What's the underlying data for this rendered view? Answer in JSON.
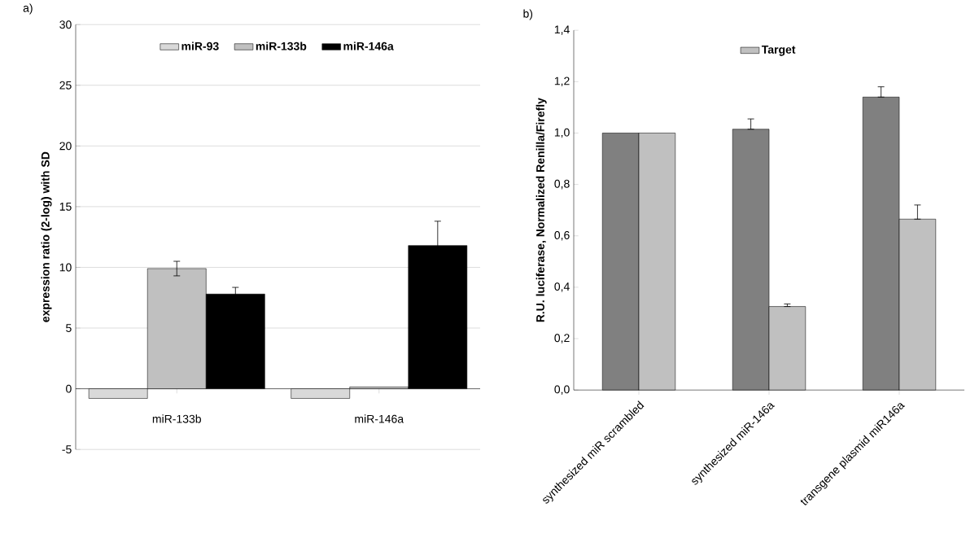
{
  "chart_data": [
    {
      "type": "bar",
      "title": "a)",
      "ylabel": "expression ratio (2-log) with SD",
      "categories": [
        "miR-133b",
        "miR-146a"
      ],
      "series": [
        {
          "name": "miR-93",
          "color": "#d9d9d9",
          "values": [
            -0.8,
            -0.8
          ]
        },
        {
          "name": "miR-133b",
          "color": "#c0c0c0",
          "values": [
            9.9,
            0.15
          ],
          "errors": [
            0.6,
            null
          ]
        },
        {
          "name": "miR-146a",
          "color": "#000000",
          "values": [
            7.8,
            11.8
          ],
          "errors": [
            0.55,
            2.0
          ]
        }
      ],
      "ylim": [
        -5,
        30
      ],
      "yticks": [
        -5,
        0,
        5,
        10,
        15,
        20,
        25,
        30
      ],
      "grid": "y",
      "legend": "top"
    },
    {
      "type": "bar",
      "title": "b)",
      "ylabel": "R.U. luciferase, Normalized Renilla/Firefly",
      "categories": [
        "synthesized miR scrambled",
        "synthesized miR-146a",
        "transgene plasmid miR146a"
      ],
      "series": [
        {
          "color": "#808080",
          "values": [
            1.0,
            1.015,
            1.14
          ],
          "errors": [
            null,
            [
              1.015,
              1.055
            ],
            [
              1.14,
              1.18
            ]
          ]
        },
        {
          "name": "Target",
          "color": "#c0c0c0",
          "values": [
            1.0,
            0.325,
            0.665
          ],
          "errors": [
            null,
            [
              0.325,
              0.335
            ],
            [
              0.665,
              0.72
            ]
          ]
        }
      ],
      "ylim": [
        0,
        1.4
      ],
      "yticks": [
        {
          "value": 0,
          "label": "0,0"
        },
        {
          "value": 0.2,
          "label": "0,2"
        },
        {
          "value": 0.4,
          "label": "0,4"
        },
        {
          "value": 0.6,
          "label": "0,6"
        },
        {
          "value": 0.8,
          "label": "0,8"
        },
        {
          "value": 1.0,
          "label": "1,0"
        },
        {
          "value": 1.2,
          "label": "1,2"
        },
        {
          "value": 1.4,
          "label": "1,4"
        }
      ],
      "grid": false,
      "legend": "top"
    }
  ]
}
